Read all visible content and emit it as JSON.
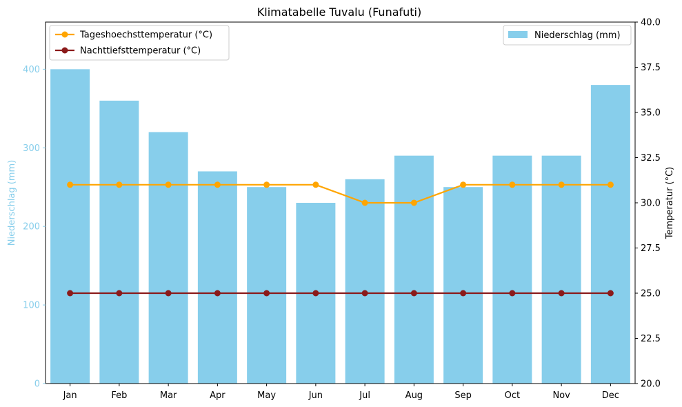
{
  "chart_data": {
    "type": "bar",
    "title": "Klimatabelle Tuvalu (Funafuti)",
    "categories": [
      "Jan",
      "Feb",
      "Mar",
      "Apr",
      "May",
      "Jun",
      "Jul",
      "Aug",
      "Sep",
      "Oct",
      "Nov",
      "Dec"
    ],
    "ylabel_left": "Niederschlag (mm)",
    "ylabel_right": "Temperatur (°C)",
    "ylim_left": [
      0,
      460
    ],
    "ylim_right": [
      20,
      40
    ],
    "yticks_left": [
      "0",
      "100",
      "200",
      "300",
      "400"
    ],
    "yticks_right": [
      "20.0",
      "22.5",
      "25.0",
      "27.5",
      "30.0",
      "32.5",
      "35.0",
      "37.5",
      "40.0"
    ],
    "grid": false,
    "bars": {
      "name": "Niederschlag (mm)",
      "axis": "left",
      "color": "#87CEEB",
      "values": [
        400,
        360,
        320,
        270,
        250,
        230,
        260,
        290,
        250,
        290,
        290,
        380
      ]
    },
    "series": [
      {
        "name": "Tageshoechsttemperatur (°C)",
        "type": "line",
        "axis": "right",
        "color": "#FFA500",
        "values": [
          31,
          31,
          31,
          31,
          31,
          31,
          30,
          30,
          31,
          31,
          31,
          31
        ]
      },
      {
        "name": "Nachttiefsttemperatur (°C)",
        "type": "line",
        "axis": "right",
        "color": "#8B1A1A",
        "values": [
          25,
          25,
          25,
          25,
          25,
          25,
          25,
          25,
          25,
          25,
          25,
          25
        ]
      }
    ],
    "legend_lines_position": "top-left",
    "legend_bars_position": "top-right",
    "left_axis_color": "#87CEEB"
  }
}
